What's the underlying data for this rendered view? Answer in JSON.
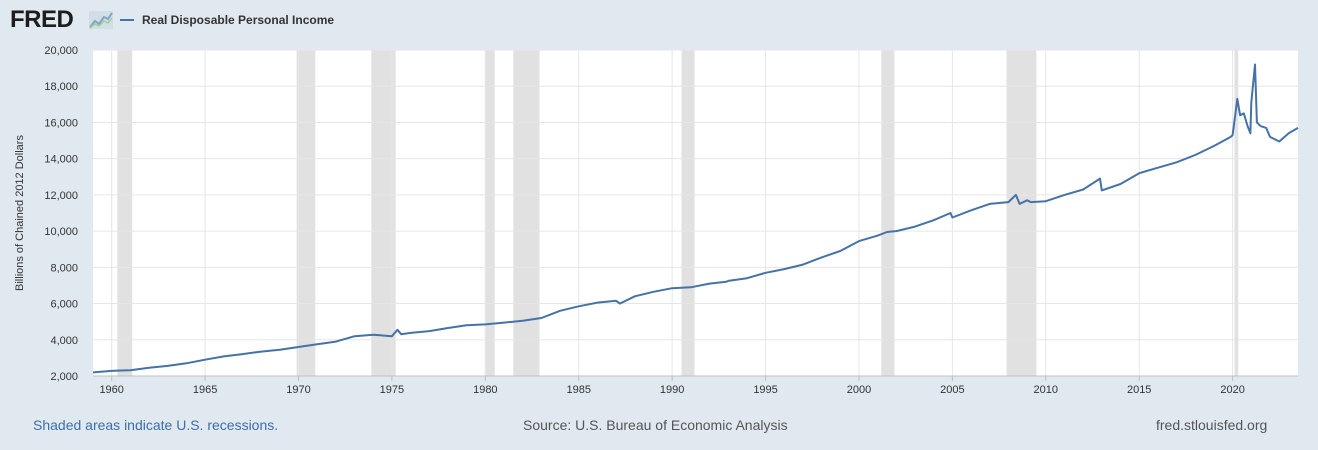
{
  "header": {
    "logo_text": "FRED",
    "series_name": "Real Disposable Personal Income",
    "series_color": "#4572a7"
  },
  "footer": {
    "recession_note": "Shaded areas indicate U.S. recessions.",
    "source": "Source: U.S. Bureau of Economic Analysis",
    "site": "fred.stlouisfed.org"
  },
  "chart_data": {
    "type": "line",
    "ylabel": "Billions of Chained 2012 Dollars",
    "ylim": [
      2000,
      20000
    ],
    "xlim": [
      1959.0,
      2023.5
    ],
    "yticks": [
      2000,
      4000,
      6000,
      8000,
      10000,
      12000,
      14000,
      16000,
      18000,
      20000
    ],
    "ytick_labels": [
      "2,000",
      "4,000",
      "6,000",
      "8,000",
      "10,000",
      "12,000",
      "14,000",
      "16,000",
      "18,000",
      "20,000"
    ],
    "xticks": [
      1960,
      1965,
      1970,
      1975,
      1980,
      1985,
      1990,
      1995,
      2000,
      2005,
      2010,
      2015,
      2020
    ],
    "xtick_labels": [
      "1960",
      "1965",
      "1970",
      "1975",
      "1980",
      "1985",
      "1990",
      "1995",
      "2000",
      "2005",
      "2010",
      "2015",
      "2020"
    ],
    "grid": true,
    "recessions": [
      [
        1960.3,
        1961.1
      ],
      [
        1969.9,
        1970.9
      ],
      [
        1973.9,
        1975.2
      ],
      [
        1980.0,
        1980.5
      ],
      [
        1981.5,
        1982.9
      ],
      [
        1990.5,
        1991.2
      ],
      [
        2001.2,
        2001.9
      ],
      [
        2007.9,
        2009.5
      ],
      [
        2020.1,
        2020.3
      ]
    ],
    "series": [
      {
        "name": "Real Disposable Personal Income",
        "color": "#4572a7",
        "x": [
          1959.0,
          1960.0,
          1961.0,
          1962.0,
          1963.0,
          1964.0,
          1965.0,
          1966.0,
          1967.0,
          1968.0,
          1969.0,
          1970.0,
          1971.0,
          1972.0,
          1973.0,
          1974.0,
          1975.0,
          1975.3,
          1975.5,
          1976.0,
          1977.0,
          1978.0,
          1979.0,
          1980.0,
          1980.5,
          1981.0,
          1982.0,
          1983.0,
          1984.0,
          1985.0,
          1986.0,
          1987.0,
          1987.2,
          1988.0,
          1989.0,
          1990.0,
          1991.0,
          1992.0,
          1992.9,
          1993.0,
          1994.0,
          1995.0,
          1996.0,
          1997.0,
          1998.0,
          1999.0,
          2000.0,
          2001.0,
          2001.5,
          2002.0,
          2003.0,
          2004.0,
          2004.9,
          2005.0,
          2006.0,
          2007.0,
          2008.0,
          2008.4,
          2008.6,
          2009.0,
          2009.2,
          2010.0,
          2011.0,
          2012.0,
          2012.9,
          2013.0,
          2014.0,
          2015.0,
          2016.0,
          2017.0,
          2018.0,
          2019.0,
          2019.9,
          2020.0,
          2020.25,
          2020.4,
          2020.6,
          2020.8,
          2020.95,
          2021.0,
          2021.2,
          2021.3,
          2021.5,
          2021.8,
          2022.0,
          2022.5,
          2023.0,
          2023.5
        ],
        "y": [
          2200,
          2280,
          2320,
          2460,
          2560,
          2700,
          2900,
          3080,
          3210,
          3350,
          3450,
          3600,
          3750,
          3900,
          4200,
          4280,
          4200,
          4550,
          4300,
          4380,
          4480,
          4650,
          4800,
          4850,
          4900,
          4950,
          5050,
          5200,
          5600,
          5850,
          6050,
          6150,
          6000,
          6400,
          6650,
          6850,
          6900,
          7100,
          7200,
          7250,
          7400,
          7700,
          7900,
          8150,
          8550,
          8900,
          9450,
          9750,
          9950,
          10000,
          10250,
          10600,
          11000,
          10750,
          11150,
          11500,
          11600,
          12000,
          11500,
          11700,
          11600,
          11650,
          12000,
          12300,
          12900,
          12250,
          12600,
          13200,
          13500,
          13800,
          14200,
          14700,
          15200,
          15300,
          17300,
          16400,
          16500,
          15800,
          15400,
          17100,
          19200,
          16000,
          15800,
          15700,
          15200,
          14950,
          15400,
          15700
        ]
      }
    ]
  }
}
